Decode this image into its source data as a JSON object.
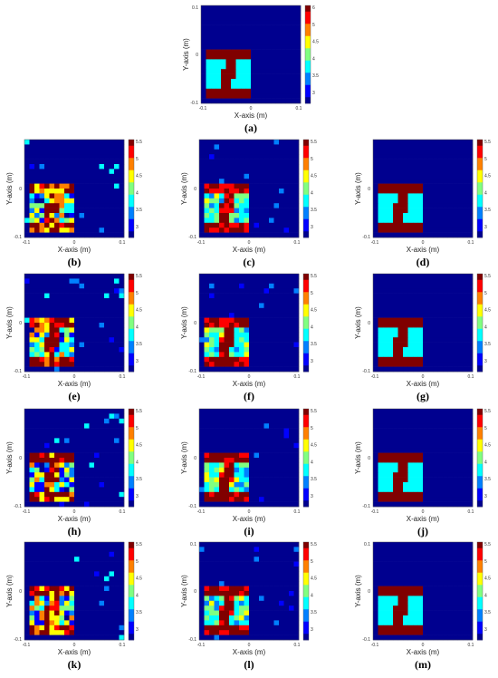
{
  "figure": {
    "background": "#ffffff",
    "colormap": [
      "#00008f",
      "#0000ff",
      "#0080ff",
      "#00ffff",
      "#80ff80",
      "#ffff00",
      "#ff8000",
      "#ff0000",
      "#800000"
    ]
  },
  "chart_data": [
    {
      "label": "(a)",
      "type": "heatmap",
      "xlabel": "X-axis (m)",
      "ylabel": "Y-axis (m)",
      "xlim": [
        -0.1,
        0.1
      ],
      "ylim": [
        -0.1,
        0.1
      ],
      "xticks": [
        "-0.1",
        "0",
        "0.1"
      ],
      "yticks": [
        "0.1",
        "0",
        "-0.1"
      ],
      "colorbar": {
        "range": [
          2.5,
          6
        ],
        "ticks": [
          "6",
          "5",
          "4.5",
          "4",
          "3.5",
          "3"
        ]
      },
      "reconstruction": "ideal"
    },
    {
      "label": "(b)",
      "type": "heatmap",
      "xlabel": "X-axis (m)",
      "ylabel": "Y-axis (m)",
      "xlim": [
        -0.1,
        0.1
      ],
      "ylim": [
        -0.1,
        0.1
      ],
      "xticks": [
        "-0.1",
        "0",
        "0.1"
      ],
      "yticks": [
        "0",
        "-0.1"
      ],
      "colorbar": {
        "range": [
          2.5,
          6
        ],
        "ticks": [
          "5.5",
          "5",
          "4.5",
          "4",
          "3.5",
          "3"
        ]
      },
      "reconstruction": "heavy-noise"
    },
    {
      "label": "(c)",
      "type": "heatmap",
      "xlabel": "X-axis (m)",
      "ylabel": "Y-axis (m)",
      "xlim": [
        -0.1,
        0.1
      ],
      "ylim": [
        -0.1,
        0.1
      ],
      "xticks": [
        "-0.1",
        "0",
        "0.1"
      ],
      "yticks": [
        "0",
        "-0.1"
      ],
      "colorbar": {
        "range": [
          2.5,
          6
        ],
        "ticks": [
          "5.5",
          "5",
          "4.5",
          "4",
          "3.5",
          "3"
        ]
      },
      "reconstruction": "light-noise"
    },
    {
      "label": "(d)",
      "type": "heatmap",
      "xlabel": "X-axis (m)",
      "ylabel": "Y-axis (m)",
      "xlim": [
        -0.1,
        0.1
      ],
      "ylim": [
        -0.1,
        0.1
      ],
      "xticks": [
        "-0.1",
        "0",
        "0.1"
      ],
      "yticks": [
        "0",
        "-0.1"
      ],
      "colorbar": {
        "range": [
          2.5,
          6
        ],
        "ticks": [
          "5.5",
          "5",
          "4.5",
          "4",
          "3.5",
          "3"
        ]
      },
      "reconstruction": "ideal"
    },
    {
      "label": "(e)",
      "type": "heatmap",
      "xlabel": "X-axis (m)",
      "ylabel": "Y-axis (m)",
      "xlim": [
        -0.1,
        0.1
      ],
      "ylim": [
        -0.1,
        0.1
      ],
      "xticks": [
        "-0.1",
        "0",
        "0.1"
      ],
      "yticks": [
        "0",
        "-0.1"
      ],
      "colorbar": {
        "range": [
          2.5,
          6
        ],
        "ticks": [
          "5.5",
          "5",
          "4.5",
          "4",
          "3.5",
          "3"
        ]
      },
      "reconstruction": "heavy-noise"
    },
    {
      "label": "(f)",
      "type": "heatmap",
      "xlabel": "X-axis (m)",
      "ylabel": "Y-axis (m)",
      "xlim": [
        -0.1,
        0.1
      ],
      "ylim": [
        -0.1,
        0.1
      ],
      "xticks": [
        "-0.1",
        "0",
        "0.1"
      ],
      "yticks": [
        "0",
        "-0.1"
      ],
      "colorbar": {
        "range": [
          2.5,
          6
        ],
        "ticks": [
          "5.5",
          "5",
          "4.5",
          "4",
          "3.5",
          "3"
        ]
      },
      "reconstruction": "light-noise"
    },
    {
      "label": "(g)",
      "type": "heatmap",
      "xlabel": "X-axis (m)",
      "ylabel": "Y-axis (m)",
      "xlim": [
        -0.1,
        0.1
      ],
      "ylim": [
        -0.1,
        0.1
      ],
      "xticks": [
        "-0.1",
        "0",
        "0.1"
      ],
      "yticks": [
        "0",
        "-0.1"
      ],
      "colorbar": {
        "range": [
          2.5,
          6
        ],
        "ticks": [
          "5.5",
          "5",
          "4.5",
          "4",
          "3.5",
          "3"
        ]
      },
      "reconstruction": "ideal"
    },
    {
      "label": "(h)",
      "type": "heatmap",
      "xlabel": "X-axis (m)",
      "ylabel": "Y-axis (m)",
      "xlim": [
        -0.1,
        0.1
      ],
      "ylim": [
        -0.1,
        0.1
      ],
      "xticks": [
        "-0.1",
        "0",
        "0.1"
      ],
      "yticks": [
        "0",
        "-0.1"
      ],
      "colorbar": {
        "range": [
          2.5,
          6
        ],
        "ticks": [
          "5.5",
          "5",
          "4.5",
          "4",
          "3.5",
          "3"
        ]
      },
      "reconstruction": "heavy-noise"
    },
    {
      "label": "(i)",
      "type": "heatmap",
      "xlabel": "X-axis (m)",
      "ylabel": "Y-axis (m)",
      "xlim": [
        -0.1,
        0.1
      ],
      "ylim": [
        -0.1,
        0.1
      ],
      "xticks": [
        "-0.1",
        "0",
        "0.1"
      ],
      "yticks": [
        "0",
        "-0.1"
      ],
      "colorbar": {
        "range": [
          2.5,
          6
        ],
        "ticks": [
          "5.5",
          "5",
          "4.5",
          "4",
          "3.5",
          "3"
        ]
      },
      "reconstruction": "light-noise"
    },
    {
      "label": "(j)",
      "type": "heatmap",
      "xlabel": "X-axis (m)",
      "ylabel": "Y-axis (m)",
      "xlim": [
        -0.1,
        0.1
      ],
      "ylim": [
        -0.1,
        0.1
      ],
      "xticks": [
        "-0.1",
        "0",
        "0.1"
      ],
      "yticks": [
        "0",
        "-0.1"
      ],
      "colorbar": {
        "range": [
          2.5,
          6
        ],
        "ticks": [
          "5.5",
          "5",
          "4.5",
          "4",
          "3.5",
          "3"
        ]
      },
      "reconstruction": "ideal"
    },
    {
      "label": "(k)",
      "type": "heatmap",
      "xlabel": "X-axis (m)",
      "ylabel": "Y-axis (m)",
      "xlim": [
        -0.1,
        0.1
      ],
      "ylim": [
        -0.1,
        0.1
      ],
      "xticks": [
        "-0.1",
        "0",
        "0.1"
      ],
      "yticks": [
        "0",
        "-0.1"
      ],
      "colorbar": {
        "range": [
          2.5,
          6
        ],
        "ticks": [
          "5.5",
          "5",
          "4.5",
          "4",
          "3.5",
          "3"
        ]
      },
      "reconstruction": "heavy-noise"
    },
    {
      "label": "(l)",
      "type": "heatmap",
      "xlabel": "X-axis (m)",
      "ylabel": "Y-axis (m)",
      "xlim": [
        -0.1,
        0.1
      ],
      "ylim": [
        -0.1,
        0.1
      ],
      "xticks": [
        "-0.1",
        "0",
        "0.1"
      ],
      "yticks": [
        "0.1",
        "0",
        "-0.1"
      ],
      "colorbar": {
        "range": [
          2.5,
          6
        ],
        "ticks": [
          "5.5",
          "5",
          "4.5",
          "4",
          "3.5",
          "3"
        ]
      },
      "reconstruction": "light-noise"
    },
    {
      "label": "(m)",
      "type": "heatmap",
      "xlabel": "X-axis (m)",
      "ylabel": "Y-axis (m)",
      "xlim": [
        -0.1,
        0.1
      ],
      "ylim": [
        -0.1,
        0.1
      ],
      "xticks": [
        "-0.1",
        "0",
        "0.1"
      ],
      "yticks": [
        "0.1",
        "0",
        "-0.1"
      ],
      "colorbar": {
        "range": [
          2.5,
          6
        ],
        "ticks": [
          "5.5",
          "5",
          "4.5",
          "4",
          "3.5",
          "3"
        ]
      },
      "reconstruction": "ideal"
    }
  ]
}
